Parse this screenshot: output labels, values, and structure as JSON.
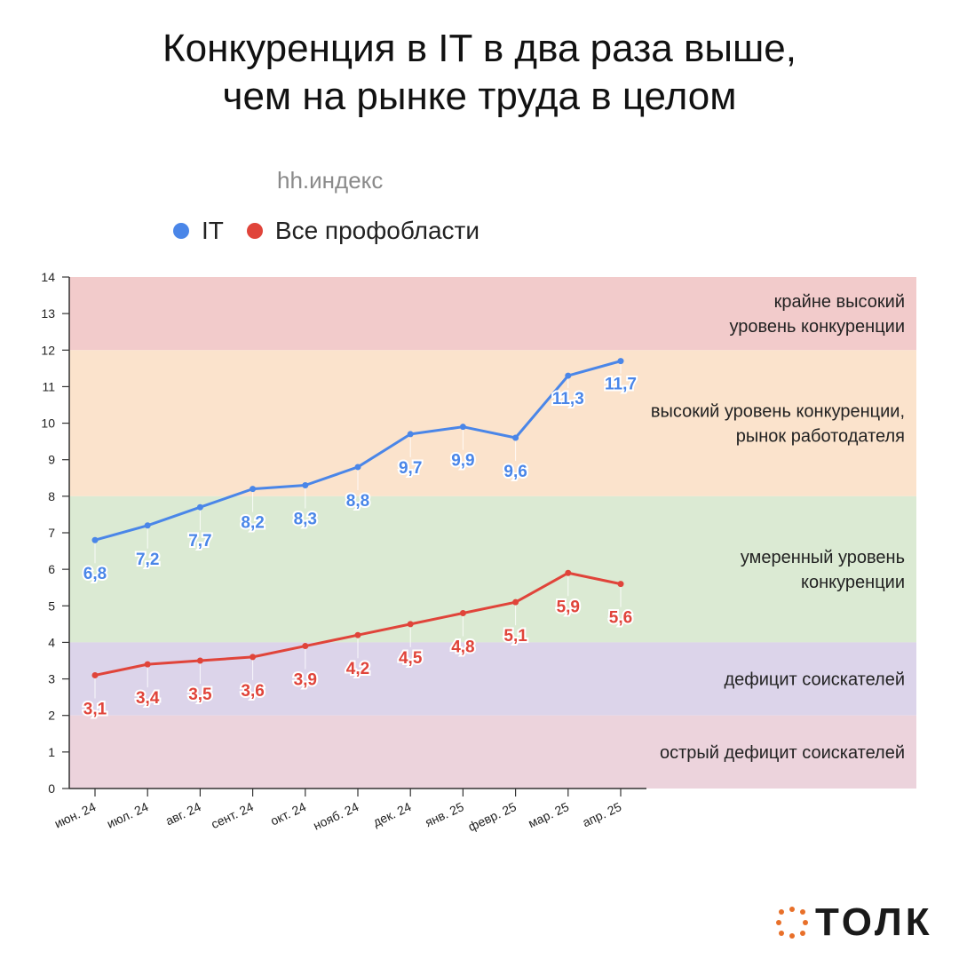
{
  "header": {
    "title_line1": "Конкуренция в IT в два раза выше,",
    "title_line2": "чем на рынке труда в целом"
  },
  "chart_data": {
    "type": "line",
    "subtitle": "hh.индекс",
    "categories": [
      "июн. 24",
      "июл. 24",
      "авг. 24",
      "сент. 24",
      "окт. 24",
      "нояб. 24",
      "дек. 24",
      "янв. 25",
      "февр. 25",
      "мар. 25",
      "апр. 25"
    ],
    "series": [
      {
        "name": "IT",
        "color": "#4a86e8",
        "values": [
          6.8,
          7.2,
          7.7,
          8.2,
          8.3,
          8.8,
          9.7,
          9.9,
          9.6,
          11.3,
          11.7
        ],
        "labels": [
          "6,8",
          "7,2",
          "7,7",
          "8,2",
          "8,3",
          "8,8",
          "9,7",
          "9,9",
          "9,6",
          "11,3",
          "11,7"
        ]
      },
      {
        "name": "Все профобласти",
        "color": "#e0443a",
        "values": [
          3.1,
          3.4,
          3.5,
          3.6,
          3.9,
          4.2,
          4.5,
          4.8,
          5.1,
          5.9,
          5.6
        ],
        "labels": [
          "3,1",
          "3,4",
          "3,5",
          "3,6",
          "3,9",
          "4,2",
          "4,5",
          "4,8",
          "5,1",
          "5,9",
          "5,6"
        ]
      }
    ],
    "ylim": [
      0,
      14
    ],
    "yticks": [
      "0",
      "1",
      "2",
      "3",
      "4",
      "5",
      "6",
      "7",
      "8",
      "9",
      "10",
      "11",
      "12",
      "13",
      "14"
    ],
    "bands": [
      {
        "from": 12,
        "to": 14,
        "color": "#f2cbcb",
        "label_lines": [
          "крайне высокий",
          "уровень конкуренции"
        ]
      },
      {
        "from": 8,
        "to": 12,
        "color": "#fbe3cc",
        "label_lines": [
          "высокий уровень конкуренции,",
          "рынок работодателя"
        ]
      },
      {
        "from": 4,
        "to": 8,
        "color": "#dbead3",
        "label_lines": [
          "умеренный уровень",
          "конкуренции"
        ]
      },
      {
        "from": 2,
        "to": 4,
        "color": "#dcd4ea",
        "label_lines": [
          "дефицит соискателей"
        ]
      },
      {
        "from": 0,
        "to": 2,
        "color": "#ecd3dc",
        "label_lines": [
          "острый дефицит соискателей"
        ]
      }
    ],
    "legend_position": "top-left",
    "grid": false
  },
  "brand": {
    "logo_text": "ТОЛК",
    "logo_icon": "dotted-square-icon",
    "accent": "#e8702a"
  }
}
